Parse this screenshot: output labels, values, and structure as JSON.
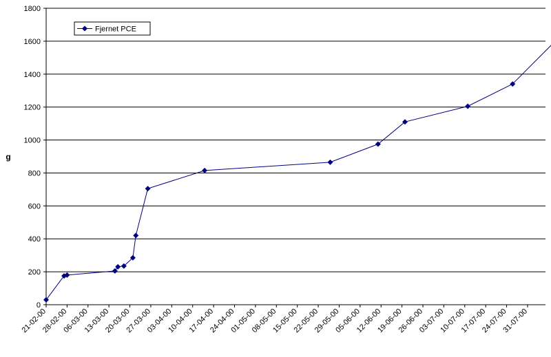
{
  "chart_data": {
    "type": "line",
    "title": "",
    "xlabel": "",
    "ylabel": "g",
    "ylim": [
      0,
      1800
    ],
    "yticks": [
      0,
      200,
      400,
      600,
      800,
      1000,
      1200,
      1400,
      1600,
      1800
    ],
    "grid": "horizontal",
    "legend_position": "top-left",
    "x_tick_labels": [
      "21-02-00",
      "28-02-00",
      "06-03-00",
      "13-03-00",
      "20-03-00",
      "27-03-00",
      "03-04-00",
      "10-04-00",
      "17-04-00",
      "24-04-00",
      "01-05-00",
      "08-05-00",
      "15-05-00",
      "22-05-00",
      "29-05-00",
      "05-06-00",
      "12-06-00",
      "19-06-00",
      "26-06-00",
      "03-07-00",
      "10-07-00",
      "17-07-00",
      "24-07-00",
      "31-07-00"
    ],
    "xlim": [
      "2000-02-21",
      "2000-08-06"
    ],
    "series": [
      {
        "name": "Fjernet PCE",
        "color": "#000080",
        "marker": "diamond",
        "points": [
          {
            "x": "2000-02-21",
            "y": 30
          },
          {
            "x": "2000-02-27",
            "y": 175
          },
          {
            "x": "2000-02-28",
            "y": 180
          },
          {
            "x": "2000-03-15",
            "y": 205
          },
          {
            "x": "2000-03-16",
            "y": 230
          },
          {
            "x": "2000-03-18",
            "y": 235
          },
          {
            "x": "2000-03-21",
            "y": 285
          },
          {
            "x": "2000-03-22",
            "y": 420
          },
          {
            "x": "2000-03-26",
            "y": 705
          },
          {
            "x": "2000-04-14",
            "y": 815
          },
          {
            "x": "2000-05-26",
            "y": 865
          },
          {
            "x": "2000-06-11",
            "y": 975
          },
          {
            "x": "2000-06-20",
            "y": 1110
          },
          {
            "x": "2000-07-11",
            "y": 1205
          },
          {
            "x": "2000-07-26",
            "y": 1340
          },
          {
            "x": "2000-08-12",
            "y": 1650
          }
        ]
      }
    ]
  }
}
